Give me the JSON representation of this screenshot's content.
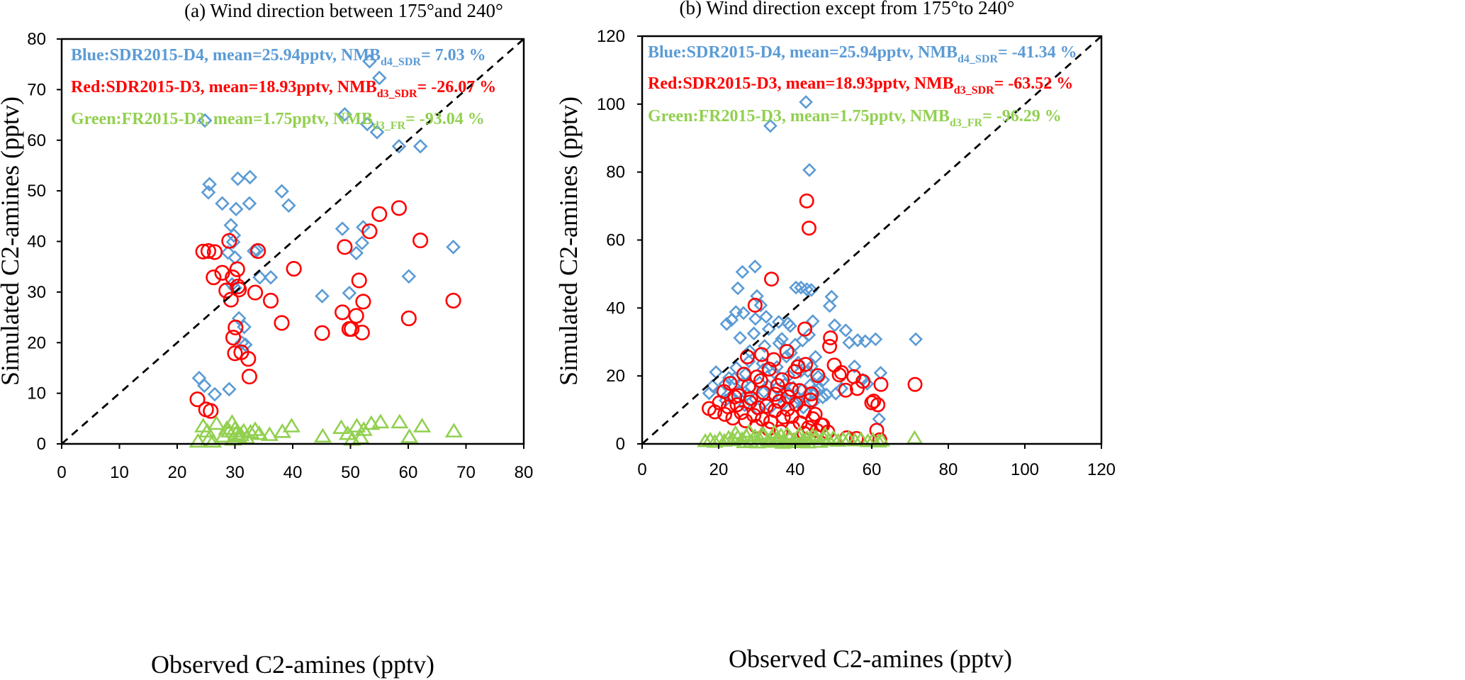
{
  "chart_data": [
    {
      "type": "scatter",
      "title": "(a) Wind direction between 175°and 240°",
      "xlabel": "Observed C2-amines (pptv)",
      "ylabel": "Simulated C2-amines (pptv)",
      "xlim": [
        0,
        80
      ],
      "ylim": [
        0,
        80
      ],
      "xticks": [
        0,
        10,
        20,
        30,
        40,
        50,
        60,
        70,
        80
      ],
      "yticks": [
        0,
        10,
        20,
        30,
        40,
        50,
        60,
        70,
        80
      ],
      "grid": false,
      "one_to_one_line": true,
      "annotations": [
        {
          "main": "Blue:SDR2015-D4, mean=25.94pptv, NMB",
          "sub": "d4_SDR",
          "tail": "= 7.03 %",
          "color": "#5B9BD5"
        },
        {
          "main": "Red:SDR2015-D3, mean=18.93pptv, NMB",
          "sub": "d3_SDR",
          "tail": "= -26.07 %",
          "color": "#FF0000"
        },
        {
          "main": "Green:FR2015-D3, mean=1.75pptv, NMB",
          "sub": "d3_FR",
          "tail": "= -93.04 %",
          "color": "#92D050"
        }
      ],
      "series": [
        {
          "name": "SDR2015-D4",
          "marker": "diamond",
          "color": "#5B9BD5",
          "x": [
            23.8,
            24.7,
            24.8,
            25.4,
            25.6,
            26.5,
            27.8,
            28.8,
            29.0,
            29.3,
            29.5,
            29.7,
            29.8,
            30.0,
            30.0,
            30.2,
            30.5,
            30.7,
            31.2,
            31.6,
            31.8,
            32.5,
            32.6,
            33.3,
            33.8,
            34.3,
            36.2,
            38.1,
            39.3,
            45.1,
            48.6,
            49.0,
            49.8,
            51.0,
            52.0,
            52.2,
            52.9,
            53.3,
            54.6,
            55.0,
            58.4,
            60.1,
            62.1,
            67.8
          ],
          "y": [
            13.0,
            11.5,
            63.9,
            49.7,
            51.3,
            9.8,
            47.5,
            37.8,
            10.8,
            43.2,
            31.5,
            39.9,
            41.2,
            30.8,
            36.8,
            46.4,
            52.4,
            24.8,
            20.0,
            23.1,
            19.6,
            47.5,
            52.7,
            38.1,
            38.3,
            32.9,
            32.9,
            49.9,
            47.1,
            29.2,
            42.5,
            65.1,
            29.8,
            37.7,
            39.7,
            42.8,
            63.2,
            75.6,
            61.6,
            72.3,
            58.8,
            33.1,
            58.8,
            38.9
          ]
        },
        {
          "name": "SDR2015-D3",
          "marker": "circle",
          "color": "#FF0000",
          "x": [
            23.5,
            24.5,
            25.0,
            25.4,
            25.8,
            26.3,
            26.5,
            27.8,
            28.5,
            29.0,
            29.3,
            29.6,
            29.7,
            30.0,
            30.1,
            30.4,
            30.5,
            30.7,
            31.1,
            32.3,
            32.5,
            33.5,
            34.0,
            36.2,
            38.1,
            40.2,
            45.1,
            48.6,
            49.0,
            49.8,
            50.2,
            51.0,
            51.5,
            52.0,
            52.2,
            53.3,
            55.0,
            58.4,
            60.1,
            62.1,
            67.8
          ],
          "y": [
            8.8,
            38.0,
            6.8,
            38.1,
            6.5,
            32.9,
            37.9,
            33.8,
            30.3,
            40.1,
            28.5,
            32.9,
            21.0,
            17.9,
            23.0,
            34.5,
            31.1,
            30.5,
            18.1,
            16.8,
            13.3,
            29.9,
            38.1,
            28.3,
            23.9,
            34.6,
            21.9,
            26.0,
            38.9,
            22.7,
            22.7,
            25.3,
            32.3,
            22.0,
            28.1,
            42.0,
            45.4,
            46.6,
            24.8,
            40.2,
            28.3
          ]
        },
        {
          "name": "FR2015-D3",
          "marker": "triangle",
          "color": "#92D050",
          "x": [
            23.6,
            24.5,
            25.2,
            25.5,
            26.2,
            26.8,
            28.0,
            28.6,
            29.0,
            29.5,
            29.7,
            30.0,
            30.2,
            30.6,
            31.0,
            31.5,
            32.0,
            32.7,
            33.5,
            34.2,
            36.0,
            38.2,
            39.8,
            45.2,
            48.4,
            49.5,
            50.3,
            51.1,
            51.8,
            52.3,
            53.6,
            55.2,
            58.5,
            60.2,
            62.4,
            67.9
          ],
          "y": [
            0.5,
            3.5,
            2.5,
            1.0,
            0.5,
            4.0,
            1.5,
            3.0,
            2.5,
            4.2,
            0.9,
            3.0,
            2.0,
            1.5,
            1.8,
            2.5,
            1.2,
            2.3,
            2.8,
            2.0,
            1.8,
            2.4,
            3.5,
            1.5,
            3.2,
            2.0,
            0.9,
            3.5,
            1.2,
            2.8,
            4.0,
            4.3,
            4.3,
            1.4,
            3.5,
            2.5
          ]
        }
      ]
    },
    {
      "type": "scatter",
      "title": "(b) Wind direction except from 175°to 240°",
      "xlabel": "Observed C2-amines (pptv)",
      "ylabel": "Simulated C2-amines (pptv)",
      "xlim": [
        0,
        120
      ],
      "ylim": [
        0,
        120
      ],
      "xticks": [
        0,
        20,
        40,
        60,
        80,
        100,
        120
      ],
      "yticks": [
        0,
        20,
        40,
        60,
        80,
        100,
        120
      ],
      "grid": false,
      "one_to_one_line": true,
      "annotations": [
        {
          "main": "Blue:SDR2015-D4, mean=25.94pptv, NMB",
          "sub": "d4_SDR",
          "tail": "= -41.34 %",
          "color": "#5B9BD5"
        },
        {
          "main": "Red:SDR2015-D3, mean=18.93pptv, NMB",
          "sub": "d3_SDR",
          "tail": "= -63.52 %",
          "color": "#FF0000"
        },
        {
          "main": "Green:FR2015-D3, mean=1.75pptv, NMB",
          "sub": "d3_FR",
          "tail": "= -96.29 %",
          "color": "#92D050"
        }
      ],
      "series": [
        {
          "name": "SDR2015-D4",
          "marker": "diamond",
          "color": "#5B9BD5",
          "x": [
            33.5,
            42.8,
            43.7,
            29.5,
            26.2,
            25.0,
            40.2,
            41.5,
            43.0,
            44.2,
            49.5,
            49.0,
            44.6,
            30.0,
            31.0,
            26.5,
            22.1,
            23.4,
            24.5,
            29.6,
            32.4,
            35.7,
            38.1,
            38.7,
            50.3,
            53.2,
            56.3,
            58.3,
            61.0,
            55.5,
            54.1,
            62.3,
            71.5,
            61.9,
            57.6,
            58.8,
            52.1,
            47.3,
            45.1,
            48.2,
            50.6,
            18.4,
            17.5,
            19.3,
            20.5,
            21.7,
            23.0,
            24.1,
            25.2,
            26.3,
            27.4,
            28.5,
            29.6,
            30.7,
            31.8,
            32.9,
            34.0,
            35.1,
            36.2,
            37.3,
            38.4,
            39.5,
            40.6,
            41.7,
            42.8,
            43.9,
            45.0,
            46.1,
            47.2,
            24.6,
            27.9,
            31.5,
            34.5,
            37.7,
            40.8,
            43.3,
            46.0,
            21.8,
            26.8,
            30.2,
            33.6,
            36.9,
            39.8,
            42.1,
            44.7,
            28.1,
            32.0,
            35.8,
            38.9,
            41.9,
            45.3,
            25.6,
            29.2,
            33.1,
            36.5,
            40.0,
            43.6,
            22.7,
            27.0,
            31.6,
            35.2,
            38.3,
            41.4,
            44.3
          ],
          "y": [
            93.6,
            100.6,
            80.6,
            52.2,
            50.6,
            45.8,
            46.0,
            46.0,
            45.5,
            45.3,
            43.3,
            40.6,
            36.1,
            43.5,
            40.8,
            38.5,
            35.3,
            36.5,
            38.8,
            36.8,
            37.4,
            35.9,
            35.5,
            34.7,
            34.9,
            33.4,
            30.5,
            30.2,
            30.8,
            22.8,
            29.8,
            20.9,
            30.8,
            7.3,
            18.9,
            17.7,
            16.3,
            18.8,
            15.9,
            14.5,
            14.8,
            17.0,
            14.9,
            21.1,
            15.6,
            17.6,
            13.7,
            19.2,
            15.2,
            17.8,
            14.5,
            16.8,
            13.2,
            18.0,
            15.3,
            17.1,
            14.3,
            16.4,
            13.9,
            17.5,
            14.8,
            16.6,
            13.4,
            15.9,
            14.1,
            17.3,
            14.7,
            16.2,
            13.7,
            22.4,
            24.3,
            23.7,
            21.0,
            25.7,
            23.9,
            21.4,
            19.8,
            12.8,
            11.4,
            10.3,
            10.8,
            11.8,
            12.1,
            10.7,
            12.2,
            27.3,
            28.8,
            29.6,
            26.8,
            30.4,
            25.6,
            31.2,
            32.5,
            33.8,
            30.9,
            29.2,
            32.1,
            19.4,
            20.6,
            21.8,
            22.6,
            20.1,
            21.3,
            22.8
          ]
        },
        {
          "name": "SDR2015-D3",
          "marker": "circle",
          "color": "#FF0000",
          "x": [
            43.0,
            43.6,
            33.8,
            29.5,
            42.5,
            49.2,
            49.0,
            50.2,
            51.5,
            52.1,
            53.2,
            55.3,
            56.2,
            57.7,
            60.0,
            61.6,
            62.4,
            71.3,
            60.5,
            61.3,
            62.1,
            53.5,
            56.0,
            45.2,
            47.2,
            48.5,
            17.5,
            19.0,
            20.2,
            21.6,
            22.5,
            23.7,
            24.8,
            25.9,
            27.0,
            28.1,
            29.2,
            30.3,
            31.4,
            32.5,
            33.6,
            34.7,
            35.8,
            36.9,
            38.0,
            39.1,
            40.2,
            41.3,
            42.4,
            43.5,
            44.6,
            45.7,
            46.8,
            25.2,
            28.4,
            31.7,
            34.8,
            38.2,
            41.1,
            44.0,
            23.0,
            26.6,
            30.0,
            33.2,
            36.6,
            39.9,
            42.7,
            45.9,
            27.5,
            31.2,
            34.4,
            37.8,
            40.7,
            29.8,
            33.0,
            36.3,
            39.4,
            42.3,
            21.4,
            24.2,
            27.8,
            31.0,
            35.4,
            39.0,
            44.2
          ],
          "y": [
            71.5,
            63.5,
            48.5,
            40.8,
            33.8,
            31.2,
            28.7,
            23.2,
            20.3,
            21.0,
            15.8,
            19.8,
            16.3,
            18.4,
            12.1,
            11.5,
            17.5,
            17.5,
            12.6,
            4.0,
            1.2,
            1.8,
            1.6,
            8.7,
            5.5,
            3.5,
            10.4,
            9.4,
            12.1,
            8.7,
            10.9,
            7.6,
            11.5,
            9.2,
            6.8,
            12.3,
            8.4,
            10.6,
            7.3,
            11.1,
            6.5,
            9.8,
            12.5,
            7.9,
            10.2,
            8.1,
            11.7,
            6.2,
            9.5,
            4.8,
            7.4,
            3.9,
            5.6,
            14.2,
            13.4,
            15.1,
            14.6,
            13.8,
            15.7,
            12.9,
            17.8,
            20.5,
            19.7,
            22.0,
            18.9,
            21.3,
            23.4,
            20.1,
            25.6,
            26.3,
            24.8,
            27.2,
            22.7,
            5.2,
            4.4,
            3.6,
            4.7,
            3.1,
            15.4,
            13.8,
            16.9,
            18.6,
            17.2,
            16.0,
            14.7
          ]
        },
        {
          "name": "FR2015-D3",
          "marker": "triangle",
          "color": "#92D050",
          "x": [
            16.5,
            17.8,
            19.0,
            20.3,
            21.5,
            22.6,
            23.8,
            25.0,
            26.1,
            27.2,
            28.4,
            29.5,
            30.6,
            31.8,
            32.9,
            34.0,
            35.2,
            36.3,
            37.4,
            38.6,
            39.7,
            40.8,
            42.0,
            43.1,
            44.2,
            45.4,
            46.5,
            47.6,
            48.8,
            50.0,
            51.2,
            52.5,
            54.0,
            55.6,
            57.2,
            59.0,
            60.3,
            61.8,
            62.6,
            71.2,
            24.4,
            28.0,
            31.3,
            34.6,
            37.9,
            41.2,
            44.5,
            47.8,
            26.7,
            30.1,
            33.5,
            36.8,
            40.1,
            43.4
          ],
          "y": [
            0.8,
            1.2,
            0.6,
            1.5,
            0.9,
            1.8,
            1.1,
            2.0,
            1.4,
            2.4,
            0.7,
            2.2,
            1.6,
            2.7,
            1.0,
            2.1,
            1.3,
            2.5,
            0.8,
            1.9,
            1.2,
            2.3,
            0.9,
            1.7,
            1.4,
            2.0,
            0.6,
            1.5,
            1.1,
            1.8,
            0.9,
            1.3,
            1.6,
            1.0,
            1.4,
            0.8,
            1.2,
            0.7,
            1.0,
            1.7,
            3.2,
            3.6,
            3.0,
            3.4,
            2.9,
            3.1,
            2.6,
            2.8,
            0.5,
            0.4,
            0.6,
            0.3,
            0.5,
            0.4
          ]
        }
      ]
    }
  ]
}
